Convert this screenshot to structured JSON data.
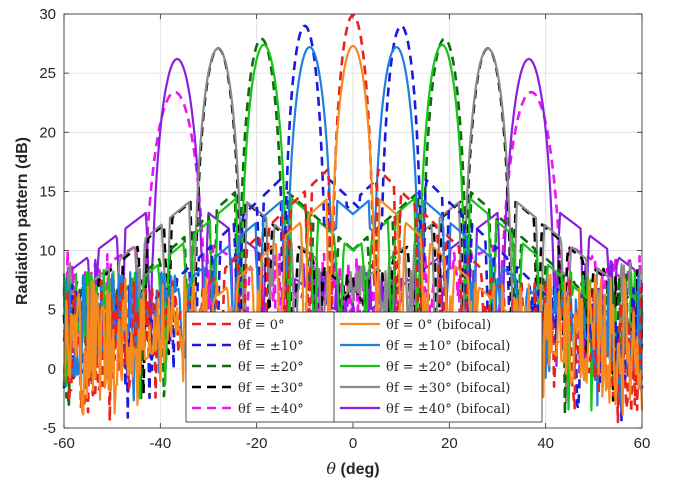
{
  "chart_data": {
    "type": "line",
    "xlabel_symbol": "θ",
    "xlabel_unit": " (deg)",
    "ylabel": "Radiation pattern (dB)",
    "xlim": [
      -60,
      60
    ],
    "ylim": [
      -5,
      30
    ],
    "xticks": [
      -60,
      -40,
      -20,
      0,
      20,
      40,
      60
    ],
    "yticks": [
      -5,
      0,
      5,
      10,
      15,
      20,
      25,
      30
    ],
    "grid": true,
    "legend_position": "bottom-center",
    "series": [
      {
        "name": "θf = 0°",
        "color": "#e8231f",
        "style": "dashed",
        "peaks": [
          {
            "x": 0,
            "y": 29.9,
            "w": 2.3
          }
        ],
        "sidelobe": 1.5
      },
      {
        "name": "θf = ±10°",
        "color": "#1a1adf",
        "style": "dashed",
        "peaks": [
          {
            "x": -10,
            "y": 29.0,
            "w": 2.3
          },
          {
            "x": 10,
            "y": 29.0,
            "w": 2.3
          }
        ],
        "sidelobe": 1.2
      },
      {
        "name": "θf = ±20°",
        "color": "#0e6b0e",
        "style": "dashed",
        "peaks": [
          {
            "x": -19,
            "y": 27.9,
            "w": 2.5
          },
          {
            "x": 19,
            "y": 27.9,
            "w": 2.5
          }
        ],
        "sidelobe": 2.0
      },
      {
        "name": "θf = ±30°",
        "color": "#000000",
        "style": "dashed",
        "peaks": [
          {
            "x": -28,
            "y": 27.1,
            "w": 2.6
          },
          {
            "x": 28,
            "y": 27.1,
            "w": 2.6
          }
        ],
        "sidelobe": 2.5
      },
      {
        "name": "θf = ±40°",
        "color": "#f012f0",
        "style": "dashed",
        "peaks": [
          {
            "x": -37,
            "y": 23.4,
            "w": 3.6
          },
          {
            "x": 37,
            "y": 23.4,
            "w": 3.6
          }
        ],
        "sidelobe": 4.0
      },
      {
        "name": "θf = 0° (bifocal)",
        "color": "#f58a1f",
        "style": "solid",
        "peaks": [
          {
            "x": 0,
            "y": 27.3,
            "w": 2.5
          }
        ],
        "sidelobe": 2.0
      },
      {
        "name": "θf = ±10° (bifocal)",
        "color": "#1f7fe0",
        "style": "solid",
        "peaks": [
          {
            "x": -9,
            "y": 27.2,
            "w": 2.6
          },
          {
            "x": 9,
            "y": 27.2,
            "w": 2.6
          }
        ],
        "sidelobe": 2.2
      },
      {
        "name": "θf = ±20° (bifocal)",
        "color": "#17c417",
        "style": "solid",
        "peaks": [
          {
            "x": -18.5,
            "y": 27.4,
            "w": 2.6
          },
          {
            "x": 18.5,
            "y": 27.4,
            "w": 2.6
          }
        ],
        "sidelobe": 2.4
      },
      {
        "name": "θf = ±30° (bifocal)",
        "color": "#8a8a8a",
        "style": "solid",
        "peaks": [
          {
            "x": -28,
            "y": 27.1,
            "w": 2.7
          },
          {
            "x": 28,
            "y": 27.1,
            "w": 2.7
          }
        ],
        "sidelobe": 3.0
      },
      {
        "name": "θf = ±40° (bifocal)",
        "color": "#8a1fe0",
        "style": "solid",
        "peaks": [
          {
            "x": -36.5,
            "y": 26.2,
            "w": 2.9
          },
          {
            "x": 36.5,
            "y": 26.2,
            "w": 2.9
          }
        ],
        "sidelobe": 3.5
      }
    ]
  }
}
